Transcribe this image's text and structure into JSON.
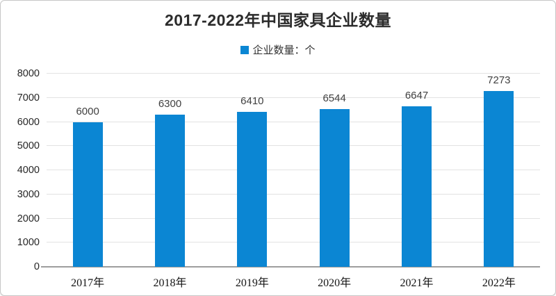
{
  "chart_data": {
    "type": "bar",
    "title": "2017-2022年中国家具企业数量",
    "legend": [
      {
        "label": "企业数量：个",
        "color": "#0b86d3"
      }
    ],
    "legend_position": "top-center",
    "categories": [
      "2017年",
      "2018年",
      "2019年",
      "2020年",
      "2021年",
      "2022年"
    ],
    "series": [
      {
        "name": "企业数量",
        "values": [
          6000,
          6300,
          6410,
          6544,
          6647,
          7273
        ]
      }
    ],
    "data_labels_shown": true,
    "xlabel": "",
    "ylabel": "",
    "ylim": [
      0,
      8000
    ],
    "ytick_step": 1000,
    "ytick_labels": [
      "0",
      "1000",
      "2000",
      "3000",
      "4000",
      "5000",
      "6000",
      "7000",
      "8000"
    ],
    "grid": "horizontal",
    "bar_color": "#0b86d3",
    "colors": {
      "title_text": "#2b2b2b",
      "axis_line": "#9d9d9d",
      "gridline": "#e2e2e2",
      "data_label_text": "#404040",
      "frame_border": "#c6c6c6"
    }
  }
}
